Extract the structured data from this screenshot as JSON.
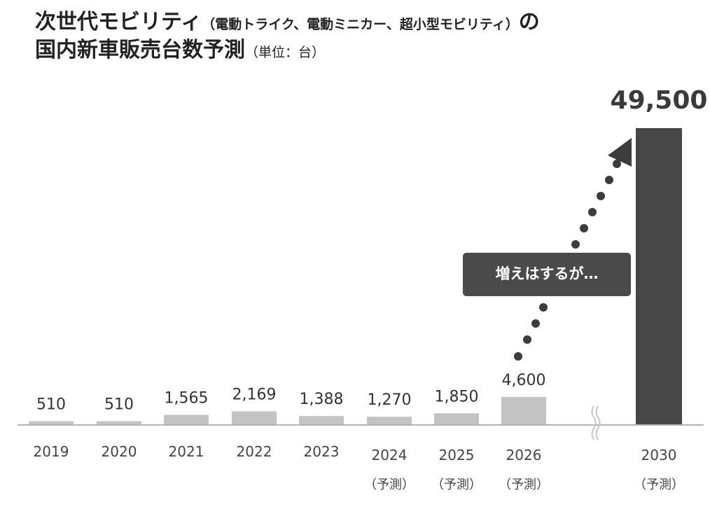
{
  "title": {
    "line1_main": "次世代モビリティ",
    "line1_sub": "（電動トライク、電動ミニカー、超小型モビリティ）",
    "line1_tail": "の",
    "line2_main": "国内新車販売台数予測",
    "line2_unit": "（単位：台）"
  },
  "callout": {
    "text": "増えはするが…"
  },
  "colors": {
    "bar": "#c3c3c3",
    "highlight_bar": "#474747",
    "callout_bg": "#4a4a4a",
    "dots": "#3c3c3c",
    "axis": "#9a9a9a"
  },
  "chart_data": {
    "type": "bar",
    "categories": [
      "2019",
      "2020",
      "2021",
      "2022",
      "2023",
      "2024",
      "2025",
      "2026",
      "2030"
    ],
    "category_notes": [
      "",
      "",
      "",
      "",
      "",
      "（予測）",
      "（予測）",
      "（予測）",
      "（予測）"
    ],
    "values": [
      510,
      510,
      1565,
      2169,
      1388,
      1270,
      1850,
      4600,
      49500
    ],
    "value_labels": [
      "510",
      "510",
      "1,565",
      "2,169",
      "1,388",
      "1,270",
      "1,850",
      "4,600",
      "49,500"
    ],
    "highlight_index": 8,
    "axis_break_between": [
      "2026",
      "2030"
    ],
    "grid": false,
    "legend": "none"
  }
}
